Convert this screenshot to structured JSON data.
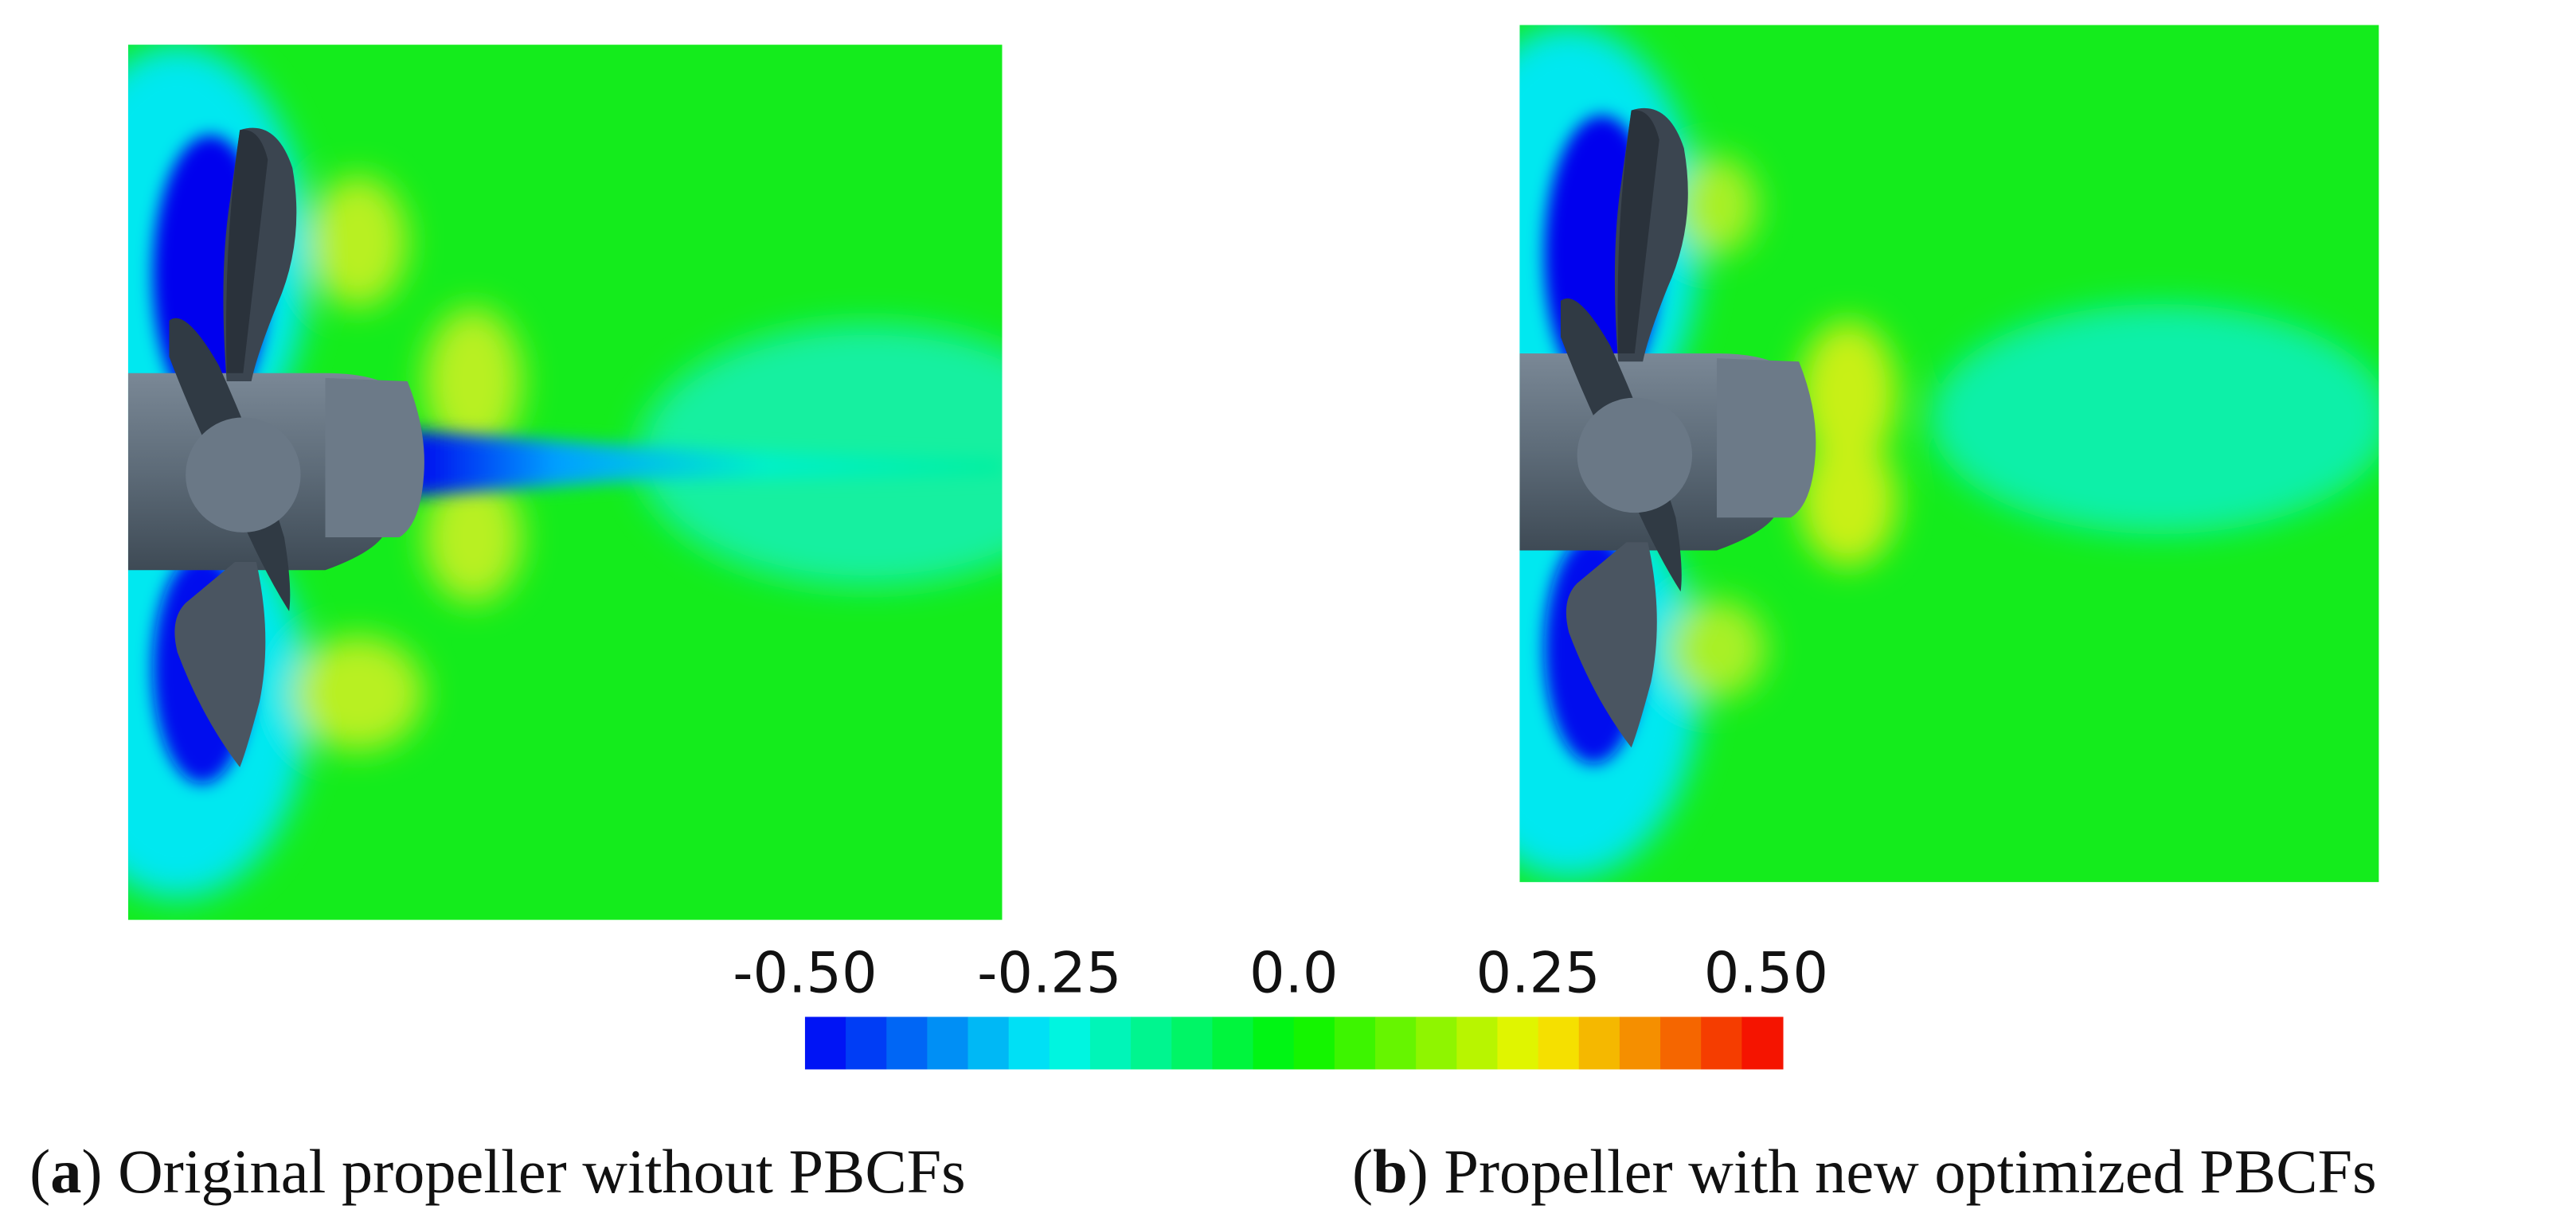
{
  "panels": [
    {
      "caption": {
        "open": "(",
        "label": "a",
        "text": ") Original propeller without PBCFs"
      }
    },
    {
      "caption": {
        "open": "(",
        "label": "b",
        "text": ") Propeller with new optimized PBCFs"
      }
    }
  ],
  "colorbar": {
    "range": [
      -0.5,
      0.5
    ],
    "ticks": [
      {
        "value": -0.5,
        "label": "-0.50"
      },
      {
        "value": -0.25,
        "label": "-0.25"
      },
      {
        "value": 0,
        "label": "0.0"
      },
      {
        "value": 0.25,
        "label": "0.25"
      },
      {
        "value": 0.5,
        "label": "0.50"
      }
    ]
  }
}
